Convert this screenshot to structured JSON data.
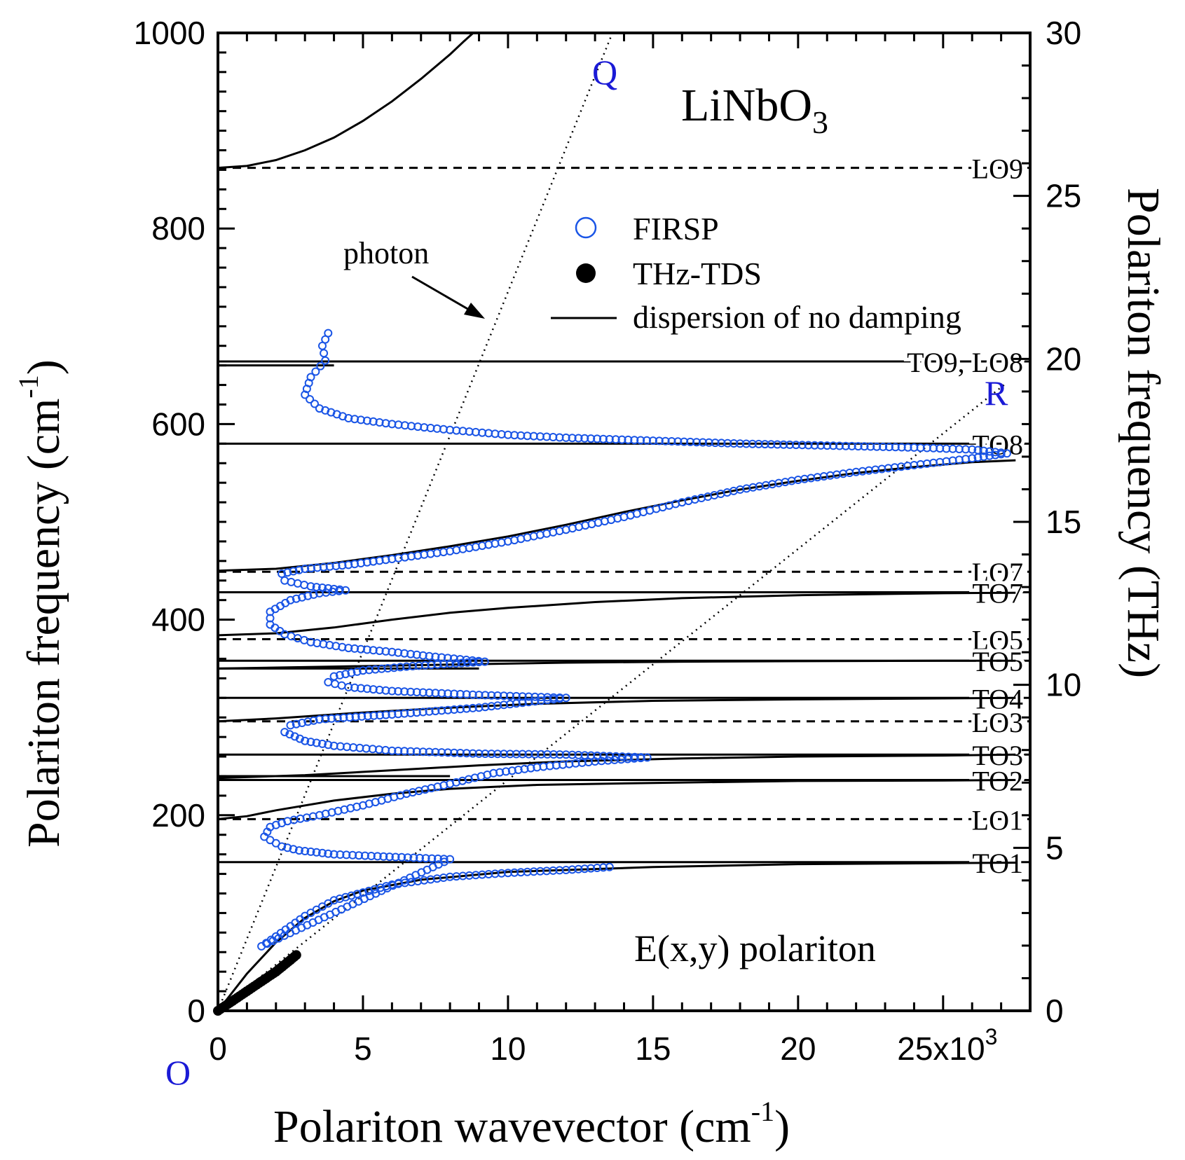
{
  "chart_data": {
    "type": "scatter",
    "title": "LiNbO3",
    "title_main": "LiNbO",
    "title_sub": "3",
    "annotation": "E(x,y) polariton",
    "xlabel_main": "Polariton wavevector (cm",
    "xlabel_sup": "-1",
    "xlabel_close": ")",
    "ylabel_left_main": "Polariton frequency (cm",
    "ylabel_left_sup": "-1",
    "ylabel_left_close": ")",
    "ylabel_right": "Polariton frequency (THz)",
    "xlim": [
      0,
      28
    ],
    "ylim_left": [
      0,
      1000
    ],
    "ylim_right": [
      0,
      30
    ],
    "x_ticks": [
      {
        "value": 0,
        "label": "0"
      },
      {
        "value": 5,
        "label": "5"
      },
      {
        "value": 10,
        "label": "10"
      },
      {
        "value": 15,
        "label": "15"
      },
      {
        "value": 20,
        "label": "20"
      },
      {
        "value": 25,
        "label": "25x10"
      }
    ],
    "x_tick_exponent": "3",
    "y_ticks_left": [
      0,
      200,
      400,
      600,
      800,
      1000
    ],
    "y_ticks_right": [
      0,
      5,
      10,
      15,
      20,
      25,
      30
    ],
    "legend": [
      {
        "name": "FIRSP",
        "marker": "open-circle",
        "color": "#1a55e6"
      },
      {
        "name": "THz-TDS",
        "marker": "filled-circle",
        "color": "#000000"
      },
      {
        "name": "dispersion of no damping",
        "marker": "line",
        "color": "#000000"
      }
    ],
    "photon_label": "photon",
    "point_labels": {
      "Q": "Q",
      "R": "R",
      "O": "O"
    },
    "photon_lines": [
      {
        "name": "Q",
        "from": [
          0,
          0
        ],
        "to": [
          13.6,
          1000
        ]
      },
      {
        "name": "R",
        "from": [
          0,
          0
        ],
        "to": [
          27.1,
          640
        ]
      }
    ],
    "mode_lines": [
      {
        "label": "LO9",
        "freq": 862,
        "style": "dashed"
      },
      {
        "label": "TO9, LO8",
        "freq": 664,
        "style": "solid"
      },
      {
        "label": "TO8",
        "freq": 580,
        "style": "solid"
      },
      {
        "label": "LO7",
        "freq": 449,
        "style": "dashed"
      },
      {
        "label": "TO7",
        "freq": 428,
        "style": "solid"
      },
      {
        "label": "LO5",
        "freq": 380,
        "style": "dashed"
      },
      {
        "label": "TO5",
        "freq": 358,
        "style": "solid"
      },
      {
        "label": "TO4",
        "freq": 320,
        "style": "solid"
      },
      {
        "label": "LO3",
        "freq": 296,
        "style": "dashed"
      },
      {
        "label": "TO3",
        "freq": 262,
        "style": "solid"
      },
      {
        "label": "TO2",
        "freq": 236,
        "style": "solid"
      },
      {
        "label": "LO1",
        "freq": 196,
        "style": "dashed"
      },
      {
        "label": "TO1",
        "freq": 152,
        "style": "solid"
      }
    ],
    "short_lines": [
      {
        "name": "band-lower-edge-8",
        "freq": 660,
        "x_end": 4
      },
      {
        "name": "band-lower-edge-5",
        "freq": 350,
        "x_end": 9
      },
      {
        "name": "band-lower-edge-2",
        "freq": 240,
        "x_end": 8
      }
    ],
    "no_damping_series": [
      {
        "name": "branch-1",
        "points": [
          [
            0,
            0
          ],
          [
            1,
            38
          ],
          [
            2,
            70
          ],
          [
            3,
            95
          ],
          [
            4,
            112
          ],
          [
            5,
            123
          ],
          [
            7,
            134
          ],
          [
            10,
            142
          ],
          [
            15,
            147
          ],
          [
            20,
            150
          ],
          [
            25,
            151
          ],
          [
            27.5,
            151.5
          ]
        ]
      },
      {
        "name": "branch-2",
        "points": [
          [
            0,
            196
          ],
          [
            1,
            199
          ],
          [
            2,
            205
          ],
          [
            4,
            215
          ],
          [
            6,
            222
          ],
          [
            8,
            227
          ],
          [
            11,
            231
          ],
          [
            15,
            233
          ],
          [
            20,
            235
          ],
          [
            25,
            235.5
          ],
          [
            27.5,
            236
          ]
        ]
      },
      {
        "name": "branch-3",
        "points": [
          [
            0,
            238
          ],
          [
            3,
            241
          ],
          [
            6,
            246
          ],
          [
            9,
            251
          ],
          [
            12,
            255
          ],
          [
            16,
            258
          ],
          [
            20,
            260
          ],
          [
            25,
            261
          ],
          [
            27.5,
            262
          ]
        ]
      },
      {
        "name": "branch-4",
        "points": [
          [
            0,
            296
          ],
          [
            2,
            299
          ],
          [
            5,
            305
          ],
          [
            8,
            310
          ],
          [
            11,
            314
          ],
          [
            15,
            317
          ],
          [
            20,
            318.5
          ],
          [
            25,
            319.5
          ],
          [
            27.5,
            320
          ]
        ]
      },
      {
        "name": "branch-5",
        "points": [
          [
            0,
            350
          ],
          [
            4,
            352
          ],
          [
            8,
            354
          ],
          [
            12,
            356
          ],
          [
            16,
            357
          ],
          [
            20,
            357.5
          ],
          [
            25,
            358
          ],
          [
            27.5,
            358
          ]
        ]
      },
      {
        "name": "branch-6",
        "points": [
          [
            0,
            384
          ],
          [
            2,
            386
          ],
          [
            4,
            392
          ],
          [
            6,
            400
          ],
          [
            8,
            407
          ],
          [
            10,
            412
          ],
          [
            13,
            418
          ],
          [
            16,
            422
          ],
          [
            20,
            425
          ],
          [
            25,
            427
          ],
          [
            27.5,
            427.5
          ]
        ]
      },
      {
        "name": "branch-7",
        "points": [
          [
            0,
            450
          ],
          [
            2,
            452
          ],
          [
            4,
            458
          ],
          [
            6,
            466
          ],
          [
            8,
            475
          ],
          [
            10,
            485
          ],
          [
            12,
            497
          ],
          [
            14,
            510
          ],
          [
            16,
            522
          ],
          [
            18,
            533
          ],
          [
            20,
            542
          ],
          [
            22,
            550
          ],
          [
            24,
            556
          ],
          [
            26,
            561
          ],
          [
            27.5,
            563
          ]
        ]
      },
      {
        "name": "branch-8",
        "points": [
          [
            0,
            862
          ],
          [
            1,
            864
          ],
          [
            2,
            870
          ],
          [
            3,
            880
          ],
          [
            4,
            893
          ],
          [
            5,
            910
          ],
          [
            6,
            930
          ],
          [
            7,
            953
          ],
          [
            8,
            978
          ],
          [
            8.5,
            992
          ],
          [
            8.8,
            1000
          ]
        ]
      }
    ],
    "firsp_series": {
      "name": "FIRSP",
      "points": [
        [
          13.5,
          147
        ],
        [
          12,
          144
        ],
        [
          10,
          141
        ],
        [
          8,
          137
        ],
        [
          6,
          129
        ],
        [
          4,
          113
        ],
        [
          3,
          97
        ],
        [
          2,
          76
        ],
        [
          1.5,
          66
        ],
        [
          8,
          155
        ],
        [
          5.5,
          158
        ],
        [
          4,
          160
        ],
        [
          2.8,
          164
        ],
        [
          2.2,
          168
        ],
        [
          1.6,
          178
        ],
        [
          1.8,
          188
        ],
        [
          2.4,
          194
        ],
        [
          3.5,
          200
        ],
        [
          5,
          210
        ],
        [
          6.5,
          222
        ],
        [
          8,
          232
        ],
        [
          9.5,
          243
        ],
        [
          11,
          249
        ],
        [
          13,
          255
        ],
        [
          14.8,
          259
        ],
        [
          12,
          262
        ],
        [
          9,
          263
        ],
        [
          6,
          266
        ],
        [
          4,
          271
        ],
        [
          3,
          276
        ],
        [
          2.3,
          285
        ],
        [
          2.5,
          292
        ],
        [
          3.5,
          298
        ],
        [
          6,
          303
        ],
        [
          9,
          310
        ],
        [
          12,
          320
        ],
        [
          9,
          323
        ],
        [
          6,
          327
        ],
        [
          4.5,
          331
        ],
        [
          3.8,
          336
        ],
        [
          4,
          342
        ],
        [
          5,
          348
        ],
        [
          6.5,
          352
        ],
        [
          8,
          355
        ],
        [
          9.2,
          357
        ],
        [
          7.5,
          362
        ],
        [
          6,
          367
        ],
        [
          4.5,
          371
        ],
        [
          3.2,
          377
        ],
        [
          2.3,
          385
        ],
        [
          1.8,
          395
        ],
        [
          1.8,
          408
        ],
        [
          2.5,
          420
        ],
        [
          3.5,
          427
        ],
        [
          4.4,
          430
        ],
        [
          3.2,
          434
        ],
        [
          2.3,
          440
        ],
        [
          2.2,
          447
        ],
        [
          3,
          452
        ],
        [
          4.5,
          456
        ],
        [
          6,
          462
        ],
        [
          8,
          470
        ],
        [
          10,
          480
        ],
        [
          12,
          492
        ],
        [
          14,
          505
        ],
        [
          16,
          520
        ],
        [
          18,
          533
        ],
        [
          20,
          543
        ],
        [
          22,
          551
        ],
        [
          24,
          558
        ],
        [
          26,
          565
        ],
        [
          27.2,
          570
        ],
        [
          26,
          574
        ],
        [
          24,
          576
        ],
        [
          21,
          578
        ],
        [
          18,
          580
        ],
        [
          15,
          583
        ],
        [
          12,
          586
        ],
        [
          10,
          589
        ],
        [
          8,
          594
        ],
        [
          6,
          600
        ],
        [
          4.5,
          606
        ],
        [
          3.5,
          616
        ],
        [
          3,
          630
        ],
        [
          3.2,
          648
        ],
        [
          3.7,
          665
        ],
        [
          3.6,
          680
        ],
        [
          3.8,
          693
        ],
        [
          3.7,
          702
        ]
      ]
    },
    "thz_tds_series": {
      "name": "THz-TDS",
      "points": [
        [
          0,
          0
        ],
        [
          0.5,
          10
        ],
        [
          1,
          20
        ],
        [
          1.5,
          30
        ],
        [
          2,
          40
        ],
        [
          2.5,
          52
        ],
        [
          2.7,
          57
        ]
      ]
    },
    "colors": {
      "firsp": "#1a55e6",
      "label_blue": "#1a1ad6",
      "axis": "#000000"
    }
  }
}
